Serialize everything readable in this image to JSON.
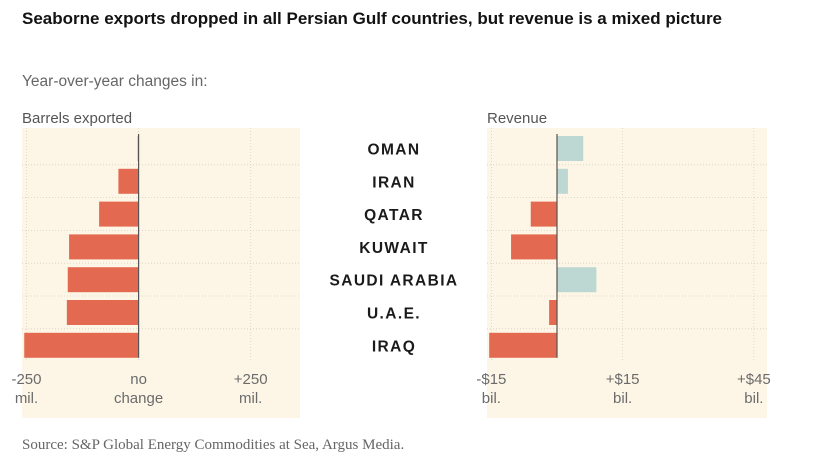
{
  "title": "Seaborne exports dropped in all Persian Gulf countries, but revenue is a mixed picture",
  "subtitle": "Year-over-year changes in:",
  "source": "Source: S&P Global Energy Commodities at Sea, Argus Media.",
  "colors": {
    "panel_bg": "#fdf6e7",
    "negative": "#e36a50",
    "positive": "#bdd8d3",
    "gridline": "#d8d0c0",
    "zero_line": "#555555"
  },
  "chart_data": {
    "type": "bar",
    "orientation": "horizontal",
    "categories": [
      "OMAN",
      "IRAN",
      "QATAR",
      "KUWAIT",
      "SAUDI ARABIA",
      "U.A.E.",
      "IRAQ"
    ],
    "panels": [
      {
        "label": "Barrels exported",
        "unit": "mil.",
        "xlim": [
          -260,
          360
        ],
        "ticks": [
          {
            "value": -250,
            "line1": "-250",
            "line2": "mil."
          },
          {
            "value": 0,
            "line1": "no",
            "line2": "change"
          },
          {
            "value": 250,
            "line1": "+250",
            "line2": "mil."
          }
        ],
        "values": [
          -2,
          -45,
          -88,
          -155,
          -158,
          -160,
          -255
        ]
      },
      {
        "label": "Revenue",
        "unit": "bil.",
        "xlim": [
          -16,
          48
        ],
        "ticks": [
          {
            "value": -15,
            "line1": "-$15",
            "line2": "bil."
          },
          {
            "value": 15,
            "line1": "+$15",
            "line2": "bil."
          },
          {
            "value": 45,
            "line1": "+$45",
            "line2": "bil."
          }
        ],
        "values": [
          6,
          2.5,
          -6,
          -10.5,
          9,
          -1.8,
          -15.5
        ]
      }
    ]
  }
}
